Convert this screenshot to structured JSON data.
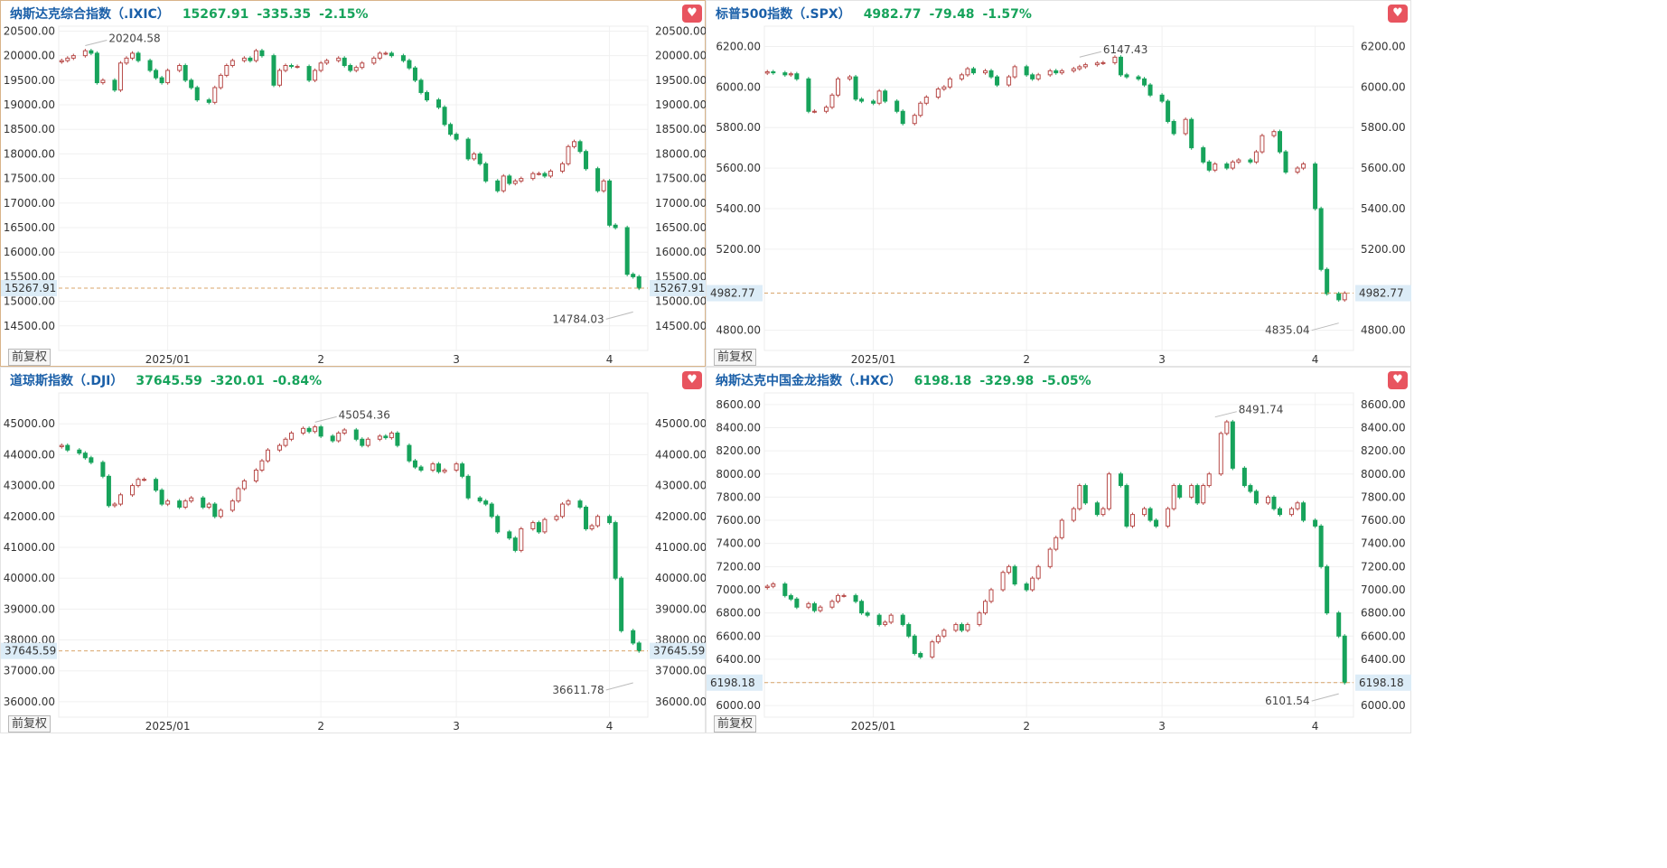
{
  "price_adjust_label": "前复权",
  "colors": {
    "up": "#b74a48",
    "down": "#17a35b",
    "ref_line": "#d9a56b",
    "badge_bg": "#dcecf7"
  },
  "panels": [
    {
      "name": "纳斯达克综合指数（.IXIC）",
      "price": "15267.91",
      "change": "-335.35",
      "pct": "-2.15%",
      "chart_data": {
        "type": "candlestick",
        "ylim": [
          14000,
          20600
        ],
        "y_ticks": [
          "20500.00",
          "20000.00",
          "19500.00",
          "19000.00",
          "18500.00",
          "18000.00",
          "17500.00",
          "17000.00",
          "16500.00",
          "16000.00",
          "15500.00",
          "15000.00",
          "14500.00"
        ],
        "y_tick_values": [
          20500,
          20000,
          19500,
          19000,
          18500,
          18000,
          17500,
          17000,
          16500,
          16000,
          15500,
          15000,
          14500
        ],
        "x_ticks": [
          "2025/01",
          "2",
          "3",
          "4"
        ],
        "x_tick_index": [
          18,
          44,
          67,
          93
        ],
        "ref_value": 15267.91,
        "ref_label": "15267.91",
        "max_label": "20204.58",
        "max_value": 20204.58,
        "max_index": 4,
        "min_label": "14784.03",
        "min_value": 14784.03,
        "min_index": 97,
        "closes": [
          19900,
          19950,
          20000,
          20100,
          20050,
          19450,
          19500,
          19300,
          19850,
          19950,
          20050,
          19900,
          19700,
          19550,
          19450,
          19700,
          19800,
          19500,
          19350,
          19100,
          19050,
          19350,
          19600,
          19800,
          19900,
          19950,
          19900,
          20100,
          20000,
          19400,
          19700,
          19800,
          19780,
          19780,
          19500,
          19700,
          19850,
          19900,
          19950,
          19800,
          19700,
          19760,
          19850,
          19950,
          20050,
          20050,
          20000,
          19900,
          19750,
          19500,
          19250,
          19100,
          18950,
          18600,
          18400,
          18300,
          17900,
          18000,
          17800,
          17450,
          17250,
          17550,
          17400,
          17450,
          17500,
          17600,
          17600,
          17550,
          17650,
          17800,
          18150,
          18250,
          18050,
          17700,
          17250,
          17450,
          16550,
          16500,
          15550,
          15500,
          15267.91
        ]
      }
    },
    {
      "name": "标普500指数（.SPX）",
      "price": "4982.77",
      "change": "-79.48",
      "pct": "-1.57%",
      "chart_data": {
        "type": "candlestick",
        "ylim": [
          4700,
          6300
        ],
        "y_ticks": [
          "6200.00",
          "6000.00",
          "5800.00",
          "5600.00",
          "5400.00",
          "5200.00",
          "4800.00"
        ],
        "y_tick_values": [
          6200,
          6000,
          5800,
          5600,
          5400,
          5200,
          4800
        ],
        "x_ticks": [
          "2025/01",
          "2",
          "3",
          "4"
        ],
        "x_tick_index": [
          18,
          44,
          67,
          93
        ],
        "ref_value": 4982.77,
        "ref_label": "4982.77",
        "max_label": "6147.43",
        "max_value": 6147.43,
        "max_index": 53,
        "min_label": "4835.04",
        "min_value": 4835.04,
        "min_index": 97,
        "closes": [
          6075,
          6070,
          6060,
          6065,
          6040,
          5880,
          5880,
          5900,
          5960,
          6040,
          6050,
          5940,
          5930,
          5920,
          5980,
          5930,
          5880,
          5820,
          5860,
          5920,
          5950,
          5990,
          6000,
          6040,
          6060,
          6090,
          6070,
          6080,
          6050,
          6010,
          6050,
          6100,
          6060,
          6040,
          6060,
          6080,
          6070,
          6080,
          6090,
          6100,
          6110,
          6118,
          6120,
          6147,
          6060,
          6050,
          6040,
          6010,
          5960,
          5930,
          5830,
          5770,
          5840,
          5700,
          5630,
          5590,
          5620,
          5600,
          5630,
          5640,
          5630,
          5680,
          5760,
          5780,
          5680,
          5580,
          5600,
          5620,
          5400,
          5100,
          4980,
          4950,
          4982.77
        ]
      }
    },
    {
      "name": "道琼斯指数（.DJI）",
      "price": "37645.59",
      "change": "-320.01",
      "pct": "-0.84%",
      "chart_data": {
        "type": "candlestick",
        "ylim": [
          35500,
          46000
        ],
        "y_ticks": [
          "45000.00",
          "44000.00",
          "43000.00",
          "42000.00",
          "41000.00",
          "40000.00",
          "39000.00",
          "38000.00",
          "37000.00",
          "36000.00"
        ],
        "y_tick_values": [
          45000,
          44000,
          43000,
          42000,
          41000,
          40000,
          39000,
          38000,
          37000,
          36000
        ],
        "x_ticks": [
          "2025/01",
          "2",
          "3",
          "4"
        ],
        "x_tick_index": [
          18,
          44,
          67,
          93
        ],
        "ref_value": 37645.59,
        "ref_label": "37645.59",
        "max_label": "45054.36",
        "max_value": 45054.36,
        "max_index": 43,
        "min_label": "36611.78",
        "min_value": 36611.78,
        "min_index": 97,
        "closes": [
          44300,
          44150,
          44050,
          43900,
          43750,
          43300,
          42350,
          42400,
          42700,
          43000,
          43200,
          43200,
          42850,
          42400,
          42500,
          42300,
          42500,
          42600,
          42300,
          42400,
          42000,
          42200,
          42500,
          42900,
          43150,
          43500,
          43800,
          44150,
          44300,
          44500,
          44700,
          44850,
          44750,
          44900,
          44600,
          44450,
          44700,
          44800,
          44500,
          44300,
          44500,
          44600,
          44550,
          44700,
          44300,
          43800,
          43600,
          43500,
          43700,
          43450,
          43500,
          43700,
          43300,
          42600,
          42500,
          42400,
          42000,
          41500,
          41300,
          40900,
          41600,
          41800,
          41500,
          41900,
          42000,
          42400,
          42500,
          42300,
          41600,
          41700,
          42000,
          41800,
          40000,
          38300,
          37900,
          37645.59
        ]
      }
    },
    {
      "name": "纳斯达克中国金龙指数（.HXC）",
      "price": "6198.18",
      "change": "-329.98",
      "pct": "-5.05%",
      "chart_data": {
        "type": "candlestick",
        "ylim": [
          5900,
          8700
        ],
        "y_ticks": [
          "8600.00",
          "8400.00",
          "8200.00",
          "8000.00",
          "7800.00",
          "7600.00",
          "7400.00",
          "7200.00",
          "7000.00",
          "6800.00",
          "6600.00",
          "6400.00",
          "6200.00",
          "6000.00"
        ],
        "y_tick_values": [
          8600,
          8400,
          8200,
          8000,
          7800,
          7600,
          7400,
          7200,
          7000,
          6800,
          6600,
          6400,
          6200,
          6000
        ],
        "x_ticks": [
          "2025/01",
          "2",
          "3",
          "4"
        ],
        "x_tick_index": [
          18,
          44,
          67,
          93
        ],
        "ref_value": 6198.18,
        "ref_label": "6198.18",
        "max_label": "8491.74",
        "max_value": 8491.74,
        "max_index": 76,
        "min_label": "6101.54",
        "min_value": 6101.54,
        "min_index": 97,
        "closes": [
          7030,
          7050,
          6950,
          6920,
          6850,
          6880,
          6820,
          6850,
          6900,
          6950,
          6950,
          6900,
          6800,
          6780,
          6700,
          6720,
          6780,
          6700,
          6600,
          6450,
          6420,
          6550,
          6600,
          6650,
          6700,
          6650,
          6700,
          6800,
          6900,
          7000,
          7150,
          7200,
          7050,
          7000,
          7100,
          7200,
          7350,
          7450,
          7600,
          7700,
          7900,
          7750,
          7650,
          7700,
          8000,
          7900,
          7550,
          7650,
          7700,
          7600,
          7550,
          7700,
          7900,
          7800,
          7900,
          7750,
          7900,
          8000,
          8350,
          8450,
          8050,
          7900,
          7850,
          7750,
          7800,
          7700,
          7650,
          7700,
          7750,
          7600,
          7550,
          7200,
          6800,
          6600,
          6198.18
        ]
      }
    }
  ]
}
